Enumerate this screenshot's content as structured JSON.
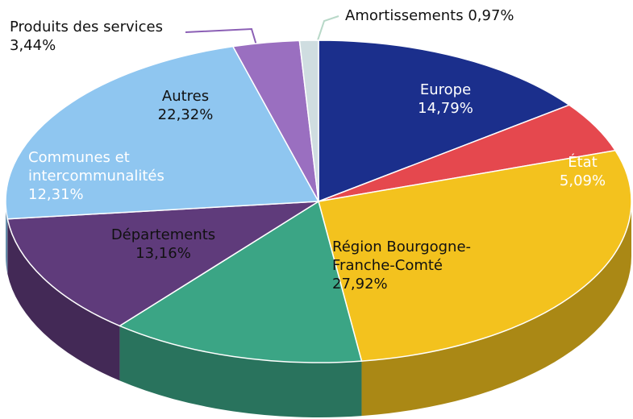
{
  "chart_data": {
    "type": "pie",
    "categories": [
      "Europe",
      "État",
      "Région Bourgogne-Franche-Comté",
      "Départements",
      "Communes et intercommunalités",
      "Autres",
      "Produits des services",
      "Amortissements"
    ],
    "values": [
      14.79,
      5.09,
      27.92,
      13.16,
      12.31,
      22.32,
      3.44,
      0.97
    ],
    "value_labels": [
      "14,79%",
      "5,09%",
      "27,92%",
      "13,16%",
      "12,31%",
      "22,32%",
      "3,44%",
      "0,97%"
    ],
    "colors": [
      "#1b2f8c",
      "#e5484e",
      "#f3c21e",
      "#3ba585",
      "#5f3b7b",
      "#8fc6f0",
      "#9a6fc0",
      "#cfdde0"
    ]
  }
}
